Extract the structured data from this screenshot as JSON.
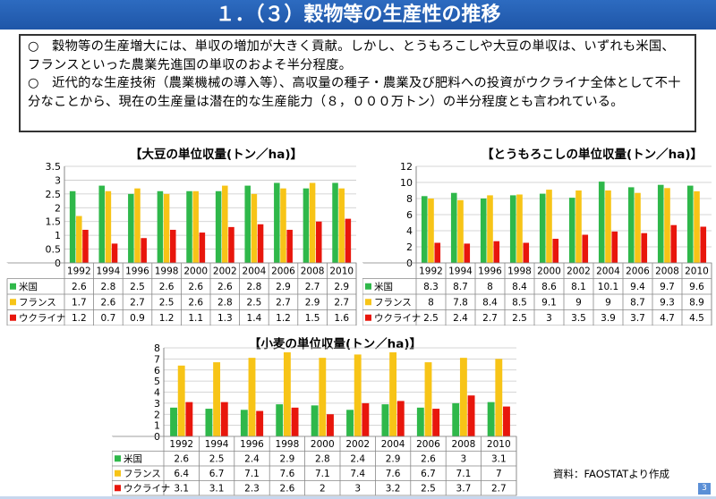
{
  "title": "１．（３）穀物等の生産性の推移",
  "bullets": [
    "○　穀物等の生産増大には、単収の増加が大きく貢献。しかし、とうもろこしや大豆の単収は、いずれも米国、フランスといった農業先進国の単収のおよそ半分程度。",
    "○　近代的な生産技術（農業機械の導入等）、高収量の種子・農業及び肥料への投資がウクライナ全体として不十分なことから、現在の生産量は潜在的な生産能力（８，０００万トン）の半分程度とも言われている。"
  ],
  "source": "資料：FAOSTATより作成",
  "page_number": "3",
  "colors": {
    "米国": "#2fb84a",
    "フランス": "#f7c417",
    "ウクライナ": "#e8160c",
    "title_bar": "#2461b4"
  },
  "chart_data": [
    {
      "type": "bar",
      "title": "【大豆の単位収量(トン／ha)】",
      "categories": [
        "1992",
        "1994",
        "1996",
        "1998",
        "2000",
        "2002",
        "2004",
        "2006",
        "2008",
        "2010"
      ],
      "ylim": [
        0,
        3.5
      ],
      "yticks": [
        "0",
        "0.5",
        "1",
        "1.5",
        "2",
        "2.5",
        "3",
        "3.5"
      ],
      "grid": true,
      "series": [
        {
          "name": "米国",
          "values": [
            2.6,
            2.8,
            2.5,
            2.6,
            2.6,
            2.6,
            2.8,
            2.9,
            2.7,
            2.9
          ]
        },
        {
          "name": "フランス",
          "values": [
            1.7,
            2.6,
            2.7,
            2.5,
            2.6,
            2.8,
            2.5,
            2.7,
            2.9,
            2.7
          ]
        },
        {
          "name": "ウクライナ",
          "values": [
            1.2,
            0.7,
            0.9,
            1.2,
            1.1,
            1.3,
            1.4,
            1.2,
            1.5,
            1.6
          ]
        }
      ]
    },
    {
      "type": "bar",
      "title": "【とうもろこしの単位収量(トン／ha)】",
      "categories": [
        "1992",
        "1994",
        "1996",
        "1998",
        "2000",
        "2002",
        "2004",
        "2006",
        "2008",
        "2010"
      ],
      "ylim": [
        0,
        12
      ],
      "yticks": [
        "0",
        "2",
        "4",
        "6",
        "8",
        "10",
        "12"
      ],
      "grid": true,
      "series": [
        {
          "name": "米国",
          "values": [
            8.3,
            8.7,
            8,
            8.4,
            8.6,
            8.1,
            10.1,
            9.4,
            9.7,
            9.6
          ]
        },
        {
          "name": "フランス",
          "values": [
            8,
            7.8,
            8.4,
            8.5,
            9.1,
            9,
            9,
            8.7,
            9.3,
            8.9
          ]
        },
        {
          "name": "ウクライナ",
          "values": [
            2.5,
            2.4,
            2.7,
            2.5,
            3,
            3.5,
            3.9,
            3.7,
            4.7,
            4.5
          ]
        }
      ]
    },
    {
      "type": "bar",
      "title": "【小麦の単位収量(トン／ha)】",
      "categories": [
        "1992",
        "1994",
        "1996",
        "1998",
        "2000",
        "2002",
        "2004",
        "2006",
        "2008",
        "2010"
      ],
      "ylim": [
        0,
        8
      ],
      "yticks": [
        "0",
        "1",
        "2",
        "3",
        "4",
        "5",
        "6",
        "7",
        "8"
      ],
      "grid": true,
      "series": [
        {
          "name": "米国",
          "values": [
            2.6,
            2.5,
            2.4,
            2.9,
            2.8,
            2.4,
            2.9,
            2.6,
            3,
            3.1
          ]
        },
        {
          "name": "フランス",
          "values": [
            6.4,
            6.7,
            7.1,
            7.6,
            7.1,
            7.4,
            7.6,
            6.7,
            7.1,
            7
          ]
        },
        {
          "name": "ウクライナ",
          "values": [
            3.1,
            3.1,
            2.3,
            2.6,
            2,
            3,
            3.2,
            2.5,
            3.7,
            2.7
          ]
        }
      ]
    }
  ]
}
